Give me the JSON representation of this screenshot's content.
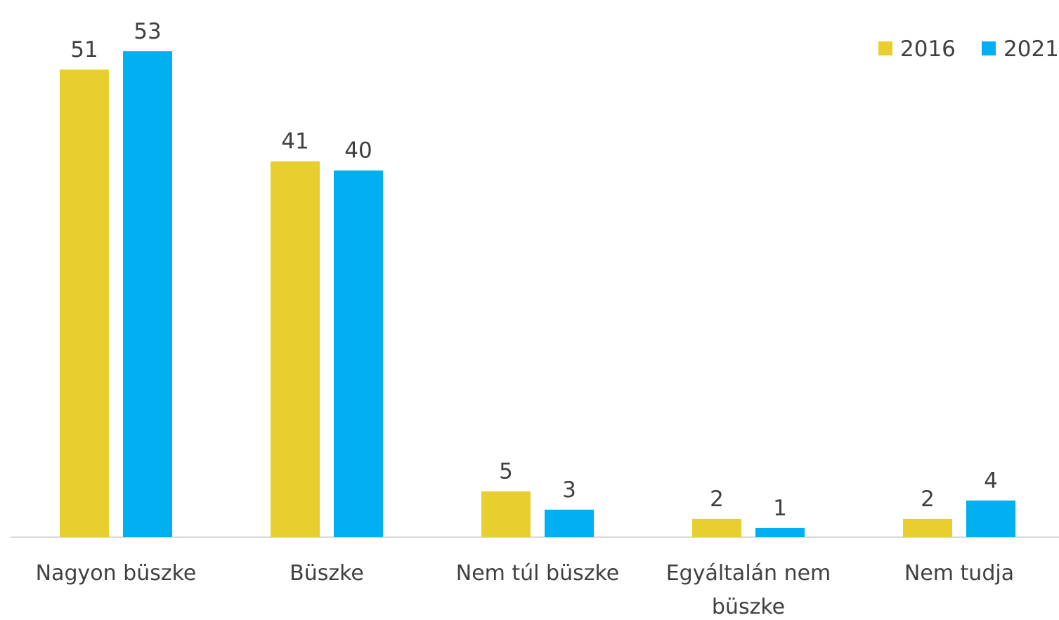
{
  "chart_data": {
    "type": "bar",
    "categories": [
      "Nagyon büszke",
      "Büszke",
      "Nem túl büszke",
      "Egyáltalán nem büszke",
      "Nem tudja"
    ],
    "series": [
      {
        "name": "2016",
        "color": "#e8cf2f",
        "values": [
          51,
          41,
          5,
          2,
          2
        ]
      },
      {
        "name": "2021",
        "color": "#00b0f0",
        "values": [
          53,
          40,
          3,
          1,
          4
        ]
      }
    ],
    "legend": "top-right"
  }
}
